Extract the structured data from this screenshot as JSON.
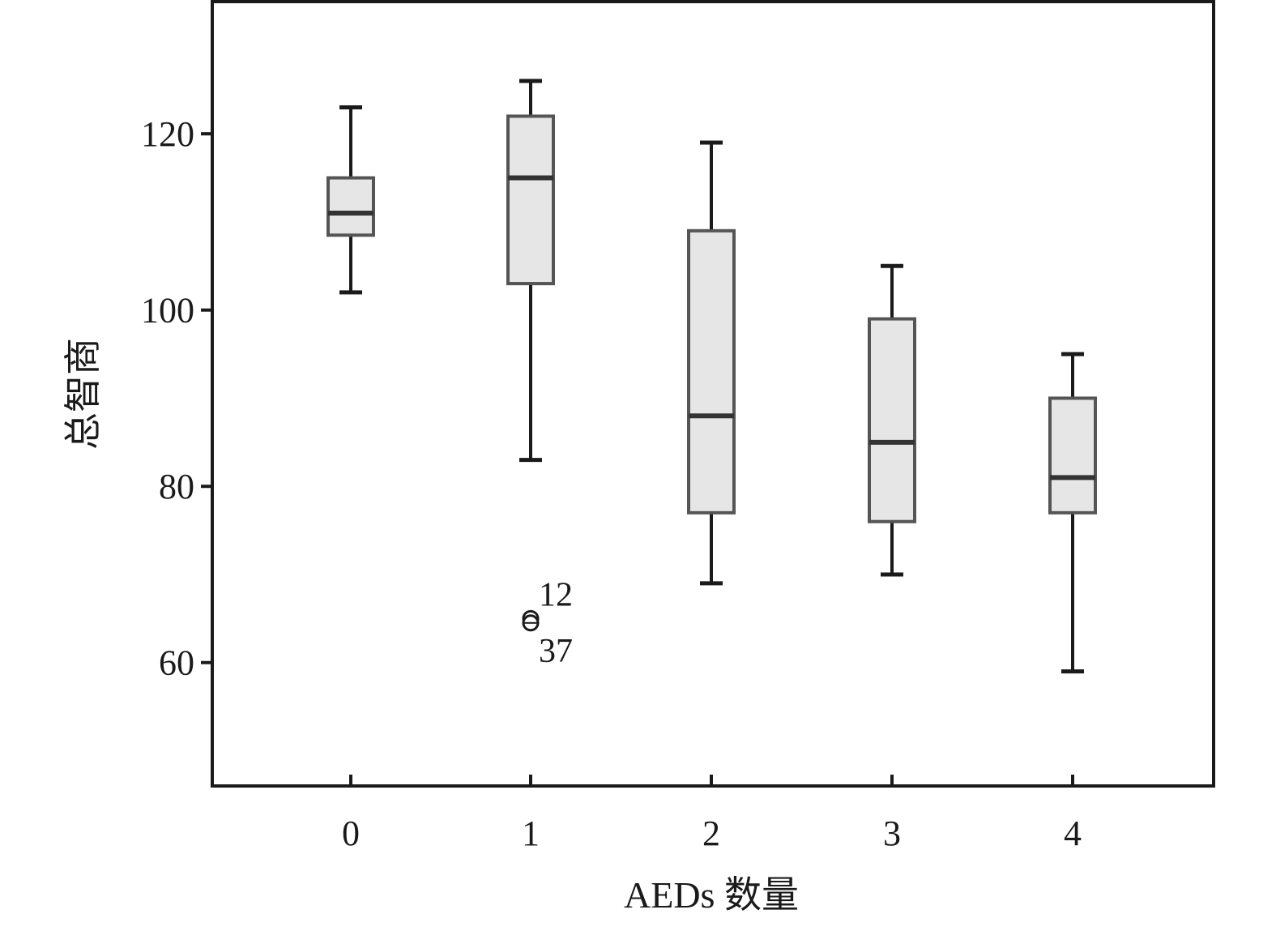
{
  "chart_data": {
    "type": "box",
    "xlabel": "AEDs 数量",
    "ylabel": "总智商",
    "ylim": [
      46,
      135
    ],
    "yticks": [
      60,
      80,
      100,
      120
    ],
    "categories": [
      "0",
      "1",
      "2",
      "3",
      "4"
    ],
    "boxes": [
      {
        "category": "0",
        "whisker_low": 102,
        "q1": 108.5,
        "median": 111,
        "q3": 115,
        "whisker_high": 123
      },
      {
        "category": "1",
        "whisker_low": 83,
        "q1": 103,
        "median": 115,
        "q3": 122,
        "whisker_high": 126
      },
      {
        "category": "2",
        "whisker_low": 69,
        "q1": 77,
        "median": 88,
        "q3": 109,
        "whisker_high": 119
      },
      {
        "category": "3",
        "whisker_low": 70,
        "q1": 76,
        "median": 85,
        "q3": 99,
        "whisker_high": 105
      },
      {
        "category": "4",
        "whisker_low": 59,
        "q1": 77,
        "median": 81,
        "q3": 90,
        "whisker_high": 95
      }
    ],
    "outliers": [
      {
        "category": "1",
        "value": 65,
        "label": "12",
        "label_side": "above"
      },
      {
        "category": "1",
        "value": 64.5,
        "label": "37",
        "label_side": "below"
      }
    ],
    "grid": false,
    "colors": {
      "box_fill": "#e6e6e6",
      "box_stroke": "#555555",
      "line": "#1a1a1a",
      "frame": "#1a1a1a"
    }
  }
}
